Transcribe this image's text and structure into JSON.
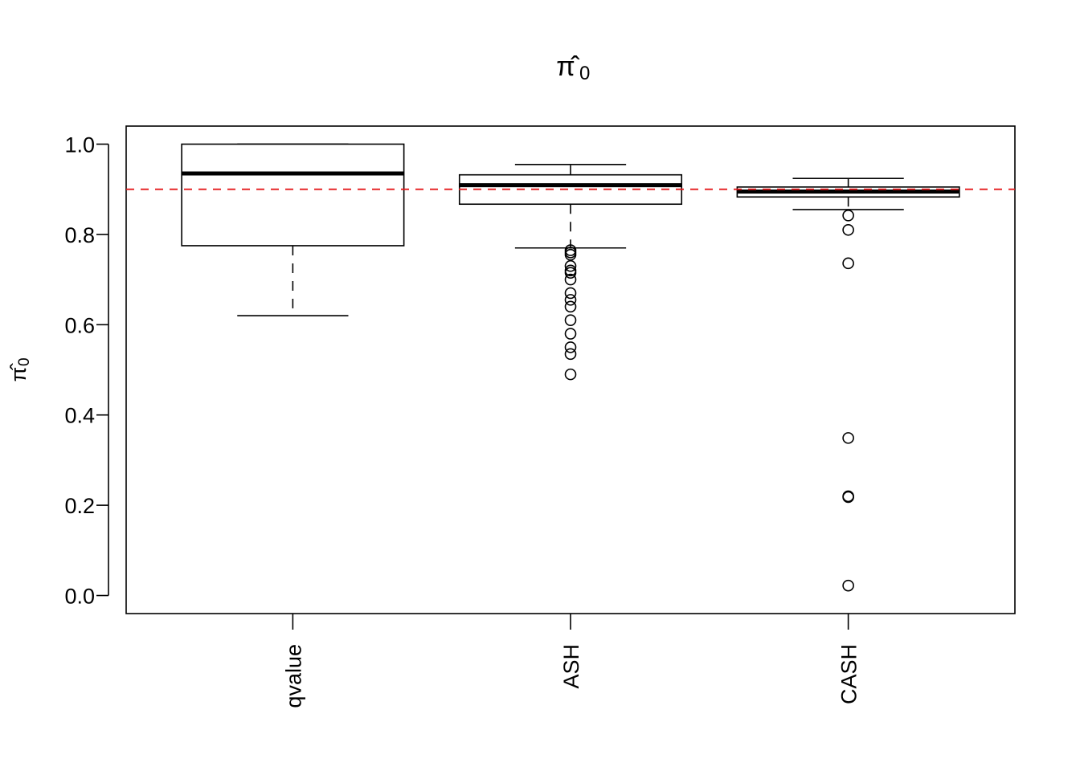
{
  "chart_data": {
    "type": "boxplot",
    "title": {
      "symbol": "π̂",
      "subscript": "0"
    },
    "ylabel": {
      "symbol": "π̂",
      "subscript": "0"
    },
    "ylim": [
      -0.04,
      1.04
    ],
    "yticks": [
      0.0,
      0.2,
      0.4,
      0.6,
      0.8,
      1.0
    ],
    "ytick_labels": [
      "0.0",
      "0.2",
      "0.4",
      "0.6",
      "0.8",
      "1.0"
    ],
    "categories": [
      "qvalue",
      "ASH",
      "CASH"
    ],
    "boxes": [
      {
        "name": "qvalue",
        "whisker_low": 0.62,
        "q1": 0.775,
        "median": 0.935,
        "q3": 1.0,
        "whisker_high": 1.0,
        "outliers": []
      },
      {
        "name": "ASH",
        "whisker_low": 0.77,
        "q1": 0.867,
        "median": 0.909,
        "q3": 0.932,
        "whisker_high": 0.955,
        "outliers": [
          0.765,
          0.76,
          0.755,
          0.73,
          0.72,
          0.715,
          0.7,
          0.67,
          0.655,
          0.64,
          0.61,
          0.58,
          0.55,
          0.535,
          0.49
        ]
      },
      {
        "name": "CASH",
        "whisker_low": 0.855,
        "q1": 0.883,
        "median": 0.895,
        "q3": 0.905,
        "whisker_high": 0.924,
        "outliers": [
          0.842,
          0.81,
          0.736,
          0.349,
          0.22,
          0.218,
          0.022
        ]
      }
    ],
    "reference_line": {
      "y": 0.9,
      "color": "#e41a1c",
      "style": "dashed"
    },
    "colors": {
      "box": "#000000",
      "reference": "#e41a1c"
    },
    "grid": false,
    "legend": "none"
  }
}
